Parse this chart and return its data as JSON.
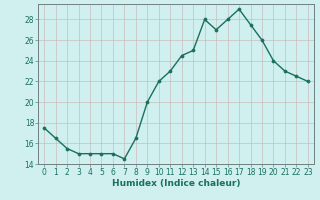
{
  "x": [
    0,
    1,
    2,
    3,
    4,
    5,
    6,
    7,
    8,
    9,
    10,
    11,
    12,
    13,
    14,
    15,
    16,
    17,
    18,
    19,
    20,
    21,
    22,
    23
  ],
  "y": [
    17.5,
    16.5,
    15.5,
    15.0,
    15.0,
    15.0,
    15.0,
    14.5,
    16.5,
    20.0,
    22.0,
    23.0,
    24.5,
    25.0,
    28.0,
    27.0,
    28.0,
    29.0,
    27.5,
    26.0,
    24.0,
    23.0,
    22.5,
    22.0
  ],
  "line_color": "#1a7060",
  "marker": "o",
  "markersize": 2.2,
  "linewidth": 1.0,
  "bg_color": "#cff0ee",
  "grid_color": "#c8b0b0",
  "xlabel": "Humidex (Indice chaleur)",
  "ylim": [
    14,
    29.5
  ],
  "yticks": [
    14,
    16,
    18,
    20,
    22,
    24,
    26,
    28
  ],
  "xlim": [
    -0.5,
    23.5
  ],
  "xlabel_fontsize": 6.5,
  "tick_fontsize": 5.5,
  "tick_color": "#1a7060",
  "xlabel_color": "#1a7060",
  "spine_color": "#708080"
}
